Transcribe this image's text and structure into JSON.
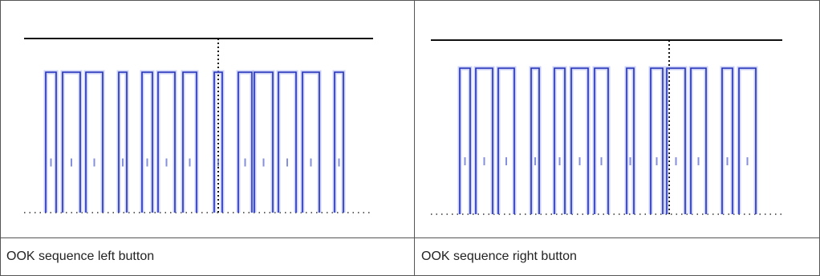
{
  "table": {
    "rows": [
      [
        "OOK sequence left button",
        "OOK sequence right button"
      ]
    ]
  }
}
